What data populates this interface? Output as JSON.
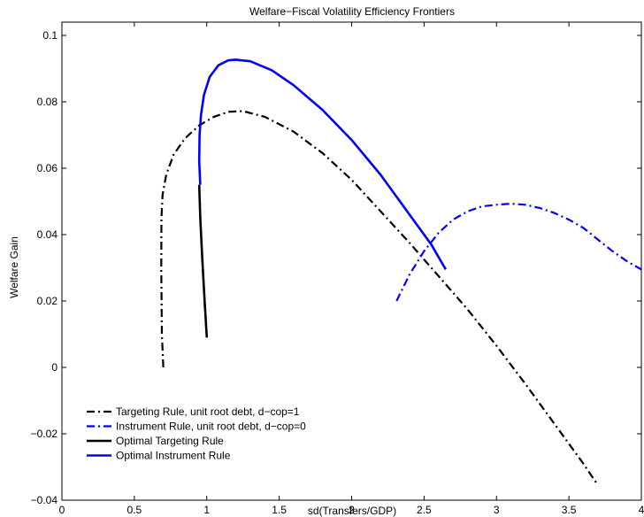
{
  "chart_data": {
    "type": "line",
    "title": "Welfare−Fiscal Volatility Efficiency Frontiers",
    "xlabel": "sd(Transfers/GDP)",
    "ylabel": "Welfare Gain",
    "xlim": [
      0,
      4
    ],
    "ylim": [
      -0.04,
      0.104
    ],
    "xticks": [
      0,
      0.5,
      1,
      1.5,
      2,
      2.5,
      3,
      3.5,
      4
    ],
    "xtick_labels": [
      "0",
      "0.5",
      "1",
      "1.5",
      "2",
      "2.5",
      "3",
      "3.5",
      "4"
    ],
    "yticks": [
      -0.04,
      -0.02,
      0,
      0.02,
      0.04,
      0.06,
      0.08,
      0.1
    ],
    "ytick_labels": [
      "−0.04",
      "−0.02",
      "0",
      "0.02",
      "0.04",
      "0.06",
      "0.08",
      "0.1"
    ],
    "grid": false,
    "legend_position": "bottom-left",
    "series": [
      {
        "name": "Targeting Rule, unit root debt, d−cop=1",
        "color": "#000000",
        "style": "dashdot",
        "points": [
          [
            0.7,
            0.0
          ],
          [
            0.69,
            0.01
          ],
          [
            0.686,
            0.03
          ],
          [
            0.687,
            0.045
          ],
          [
            0.695,
            0.052
          ],
          [
            0.72,
            0.058
          ],
          [
            0.77,
            0.064
          ],
          [
            0.85,
            0.069
          ],
          [
            0.95,
            0.073
          ],
          [
            1.05,
            0.0755
          ],
          [
            1.15,
            0.077
          ],
          [
            1.25,
            0.0772
          ],
          [
            1.4,
            0.0755
          ],
          [
            1.6,
            0.071
          ],
          [
            1.8,
            0.0645
          ],
          [
            2.0,
            0.0565
          ],
          [
            2.2,
            0.047
          ],
          [
            2.4,
            0.0375
          ],
          [
            2.6,
            0.0275
          ],
          [
            2.8,
            0.0175
          ],
          [
            3.0,
            0.0065
          ],
          [
            3.2,
            -0.005
          ],
          [
            3.4,
            -0.017
          ],
          [
            3.6,
            -0.029
          ],
          [
            3.7,
            -0.0355
          ]
        ]
      },
      {
        "name": "Instrument Rule, unit root debt, d−cop=0",
        "color": "#0000ff",
        "style": "dashdot",
        "points": [
          [
            2.31,
            0.02
          ],
          [
            2.4,
            0.028
          ],
          [
            2.5,
            0.035
          ],
          [
            2.6,
            0.0405
          ],
          [
            2.7,
            0.0445
          ],
          [
            2.8,
            0.047
          ],
          [
            2.9,
            0.0485
          ],
          [
            3.0,
            0.049
          ],
          [
            3.1,
            0.0493
          ],
          [
            3.2,
            0.049
          ],
          [
            3.3,
            0.048
          ],
          [
            3.4,
            0.0465
          ],
          [
            3.5,
            0.0445
          ],
          [
            3.6,
            0.042
          ],
          [
            3.7,
            0.0385
          ],
          [
            3.8,
            0.035
          ],
          [
            3.9,
            0.032
          ],
          [
            4.0,
            0.0295
          ]
        ]
      },
      {
        "name": "Optimal Targeting Rule",
        "color": "#000000",
        "style": "solid",
        "points": [
          [
            1.0,
            0.009
          ],
          [
            0.985,
            0.02
          ],
          [
            0.97,
            0.032
          ],
          [
            0.955,
            0.045
          ],
          [
            0.948,
            0.055
          ]
        ]
      },
      {
        "name": "Optimal Instrument Rule",
        "color": "#0000ff",
        "style": "solid",
        "points": [
          [
            0.955,
            0.055
          ],
          [
            0.948,
            0.062
          ],
          [
            0.95,
            0.07
          ],
          [
            0.96,
            0.076
          ],
          [
            0.98,
            0.082
          ],
          [
            1.02,
            0.0875
          ],
          [
            1.08,
            0.091
          ],
          [
            1.15,
            0.0925
          ],
          [
            1.2,
            0.0927
          ],
          [
            1.3,
            0.0922
          ],
          [
            1.45,
            0.0895
          ],
          [
            1.6,
            0.085
          ],
          [
            1.8,
            0.0775
          ],
          [
            2.0,
            0.0685
          ],
          [
            2.2,
            0.058
          ],
          [
            2.4,
            0.046
          ],
          [
            2.55,
            0.037
          ],
          [
            2.65,
            0.0295
          ]
        ]
      }
    ]
  }
}
